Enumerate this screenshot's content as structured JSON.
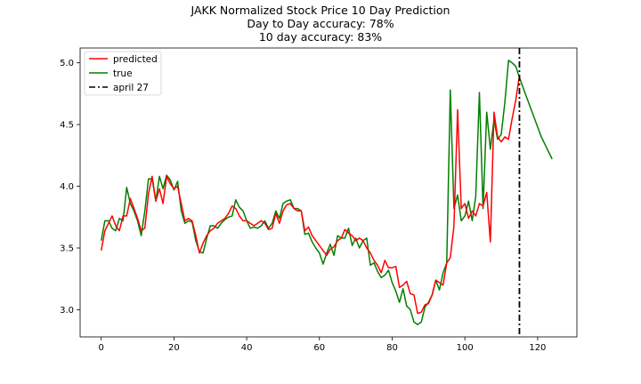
{
  "chart_data": {
    "type": "line",
    "title": "JAKK Normalized Stock Price 10 Day Prediction",
    "subtitle_lines": [
      "Day to Day accuracy: 78%",
      "10 day accuracy: 83%"
    ],
    "xlabel": "",
    "ylabel": "",
    "xlim": [
      -5.8,
      130.8
    ],
    "ylim": [
      2.78,
      5.12
    ],
    "xticks": [
      0,
      20,
      40,
      60,
      80,
      100,
      120
    ],
    "yticks": [
      3.0,
      3.5,
      4.0,
      4.5,
      5.0
    ],
    "ytick_labels": [
      "3.0",
      "3.5",
      "4.0",
      "4.5",
      "5.0"
    ],
    "grid": false,
    "legend": {
      "placement": "top-left",
      "entries": [
        "predicted",
        "true",
        "april 27"
      ]
    },
    "series": [
      {
        "name": "predicted",
        "color": "#ff0000",
        "x_start": 0,
        "values": [
          3.48,
          3.64,
          3.7,
          3.76,
          3.68,
          3.64,
          3.76,
          3.76,
          3.9,
          3.82,
          3.74,
          3.64,
          3.66,
          3.94,
          4.08,
          3.88,
          3.98,
          3.86,
          4.08,
          4.02,
          3.98,
          4.0,
          3.86,
          3.72,
          3.74,
          3.72,
          3.6,
          3.46,
          3.54,
          3.6,
          3.64,
          3.66,
          3.7,
          3.72,
          3.74,
          3.78,
          3.84,
          3.82,
          3.76,
          3.72,
          3.72,
          3.7,
          3.68,
          3.7,
          3.72,
          3.7,
          3.65,
          3.66,
          3.78,
          3.7,
          3.8,
          3.85,
          3.86,
          3.82,
          3.8,
          3.8,
          3.64,
          3.67,
          3.6,
          3.56,
          3.52,
          3.48,
          3.44,
          3.49,
          3.51,
          3.56,
          3.58,
          3.65,
          3.62,
          3.6,
          3.56,
          3.58,
          3.56,
          3.5,
          3.46,
          3.4,
          3.36,
          3.3,
          3.4,
          3.34,
          3.34,
          3.35,
          3.18,
          3.2,
          3.23,
          3.13,
          3.12,
          2.97,
          2.98,
          3.04,
          3.05,
          3.12,
          3.24,
          3.22,
          3.2,
          3.38,
          3.42,
          3.68,
          4.62,
          3.82,
          3.86,
          3.74,
          3.8,
          3.76,
          3.86,
          3.84,
          3.95,
          3.55,
          4.6,
          4.4,
          4.36,
          4.4,
          4.38,
          4.55,
          4.7,
          4.9
        ]
      },
      {
        "name": "true",
        "color": "#008000",
        "x_start": 0,
        "values": [
          3.56,
          3.72,
          3.72,
          3.66,
          3.64,
          3.74,
          3.72,
          3.99,
          3.86,
          3.8,
          3.72,
          3.6,
          3.8,
          4.06,
          4.06,
          3.88,
          4.08,
          3.98,
          4.09,
          4.05,
          3.97,
          4.04,
          3.8,
          3.7,
          3.72,
          3.71,
          3.56,
          3.47,
          3.46,
          3.58,
          3.68,
          3.68,
          3.66,
          3.7,
          3.73,
          3.75,
          3.76,
          3.89,
          3.83,
          3.8,
          3.72,
          3.66,
          3.67,
          3.66,
          3.68,
          3.72,
          3.66,
          3.7,
          3.8,
          3.74,
          3.86,
          3.88,
          3.89,
          3.82,
          3.82,
          3.8,
          3.61,
          3.62,
          3.55,
          3.5,
          3.46,
          3.37,
          3.46,
          3.53,
          3.44,
          3.6,
          3.58,
          3.58,
          3.66,
          3.52,
          3.58,
          3.5,
          3.56,
          3.58,
          3.36,
          3.38,
          3.31,
          3.26,
          3.28,
          3.32,
          3.22,
          3.15,
          3.06,
          3.17,
          3.03,
          3.0,
          2.9,
          2.88,
          2.9,
          3.02,
          3.06,
          3.12,
          3.24,
          3.16,
          3.3,
          3.38,
          4.78,
          3.82,
          3.93,
          3.72,
          3.76,
          3.88,
          3.72,
          3.92,
          4.76,
          3.82,
          4.6,
          4.3,
          4.54,
          4.38,
          4.42,
          4.68,
          5.02,
          5.0,
          4.97,
          4.88,
          4.8,
          4.72,
          4.64,
          4.56,
          4.48,
          4.4,
          4.34,
          4.28,
          4.22
        ]
      }
    ],
    "vertical_line": {
      "label": "april 27",
      "x": 115,
      "color": "#000000",
      "style": "dashdot"
    }
  }
}
